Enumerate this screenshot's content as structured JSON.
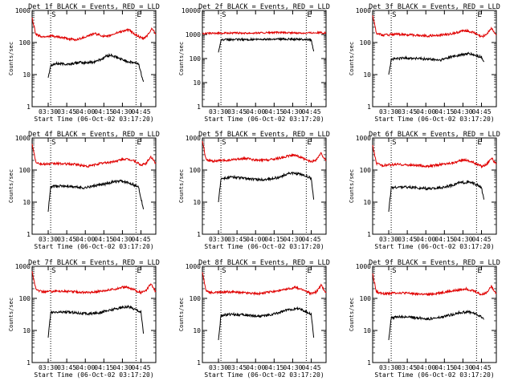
{
  "ylabel": "Counts/sec",
  "xlabel_prefix": "Start Time (06-Oct-02 03:17:20)",
  "xticks": [
    "03:30",
    "03:45",
    "04:00",
    "04:15",
    "04:30",
    "04:45"
  ],
  "yticks": [
    "1",
    "10",
    "100",
    "1000"
  ],
  "markers": [
    "S",
    "E"
  ],
  "colors": {
    "events": "#000000",
    "lld": "#e00000"
  },
  "chart_data": [
    {
      "type": "line",
      "title": "Det 1f BLACK = Events, RED = LLD",
      "x_unit": "minutes since 03:17:20",
      "xlim": [
        0,
        100
      ],
      "ylim": [
        1,
        1000
      ],
      "yscale": "log",
      "series": [
        {
          "name": "Events",
          "color": "#000000",
          "x": [
            13,
            15,
            20,
            30,
            38,
            42,
            50,
            56,
            60,
            64,
            70,
            78,
            86,
            90
          ],
          "y": [
            8,
            20,
            22,
            21,
            24,
            23,
            25,
            30,
            38,
            40,
            32,
            25,
            22,
            6
          ]
        },
        {
          "name": "LLD",
          "color": "#e00000",
          "x": [
            0,
            3,
            8,
            15,
            25,
            35,
            43,
            50,
            60,
            70,
            78,
            84,
            88,
            90,
            94,
            97,
            100
          ],
          "y": [
            600,
            180,
            150,
            160,
            140,
            120,
            150,
            190,
            150,
            210,
            250,
            170,
            140,
            130,
            180,
            280,
            180
          ]
        }
      ],
      "vlines": [
        15,
        84
      ],
      "grid": false
    },
    {
      "type": "line",
      "title": "Det 2f BLACK = Events, RED = LLD",
      "x_unit": "minutes since 03:17:20",
      "xlim": [
        0,
        100
      ],
      "ylim": [
        1,
        10000
      ],
      "yscale": "log",
      "series": [
        {
          "name": "Events",
          "color": "#000000",
          "x": [
            13,
            15,
            30,
            45,
            60,
            75,
            85,
            88,
            90
          ],
          "y": [
            180,
            600,
            620,
            620,
            650,
            640,
            620,
            600,
            200
          ]
        },
        {
          "name": "LLD",
          "color": "#e00000",
          "x": [
            0,
            20,
            40,
            60,
            80,
            95,
            100
          ],
          "y": [
            1100,
            1150,
            1150,
            1200,
            1150,
            1200,
            1150
          ]
        }
      ],
      "vlines": [
        15,
        84
      ],
      "grid": false
    },
    {
      "type": "line",
      "title": "Det 3f BLACK = Events, RED = LLD",
      "x_unit": "minutes since 03:17:20",
      "xlim": [
        0,
        100
      ],
      "ylim": [
        1,
        1000
      ],
      "yscale": "log",
      "series": [
        {
          "name": "Events",
          "color": "#000000",
          "x": [
            13,
            15,
            25,
            35,
            45,
            55,
            62,
            70,
            78,
            84,
            88,
            90
          ],
          "y": [
            10,
            30,
            33,
            32,
            30,
            28,
            35,
            40,
            45,
            38,
            35,
            25
          ]
        },
        {
          "name": "LLD",
          "color": "#e00000",
          "x": [
            0,
            3,
            8,
            20,
            35,
            45,
            55,
            65,
            75,
            82,
            88,
            92,
            96,
            100
          ],
          "y": [
            700,
            200,
            170,
            180,
            170,
            160,
            170,
            190,
            240,
            200,
            150,
            180,
            280,
            170
          ]
        }
      ],
      "vlines": [
        15,
        84
      ],
      "grid": false
    },
    {
      "type": "line",
      "title": "Det 4f BLACK = Events, RED = LLD",
      "x_unit": "minutes since 03:17:20",
      "xlim": [
        0,
        100
      ],
      "ylim": [
        1,
        1000
      ],
      "yscale": "log",
      "series": [
        {
          "name": "Events",
          "color": "#000000",
          "x": [
            13,
            15,
            25,
            35,
            42,
            50,
            58,
            65,
            72,
            80,
            86,
            90
          ],
          "y": [
            5,
            30,
            32,
            30,
            28,
            32,
            36,
            42,
            45,
            38,
            30,
            6
          ]
        },
        {
          "name": "LLD",
          "color": "#e00000",
          "x": [
            0,
            3,
            8,
            20,
            35,
            45,
            55,
            65,
            75,
            82,
            88,
            92,
            96,
            100
          ],
          "y": [
            650,
            180,
            150,
            160,
            150,
            130,
            160,
            180,
            220,
            200,
            140,
            160,
            260,
            160
          ]
        }
      ],
      "vlines": [
        15,
        84
      ],
      "grid": false
    },
    {
      "type": "line",
      "title": "Det 5f BLACK = Events, RED = LLD",
      "x_unit": "minutes since 03:17:20",
      "xlim": [
        0,
        100
      ],
      "ylim": [
        1,
        1000
      ],
      "yscale": "log",
      "series": [
        {
          "name": "Events",
          "color": "#000000",
          "x": [
            13,
            15,
            25,
            35,
            45,
            55,
            62,
            70,
            78,
            84,
            88,
            90
          ],
          "y": [
            10,
            55,
            60,
            55,
            50,
            52,
            60,
            80,
            75,
            65,
            55,
            12
          ]
        },
        {
          "name": "LLD",
          "color": "#e00000",
          "x": [
            0,
            3,
            8,
            20,
            35,
            45,
            55,
            65,
            75,
            82,
            88,
            92,
            96,
            100
          ],
          "y": [
            800,
            210,
            190,
            200,
            230,
            200,
            210,
            250,
            300,
            220,
            180,
            210,
            330,
            190
          ]
        }
      ],
      "vlines": [
        15,
        84
      ],
      "grid": false
    },
    {
      "type": "line",
      "title": "Det 6f BLACK = Events, RED = LLD",
      "x_unit": "minutes since 03:17:20",
      "xlim": [
        0,
        100
      ],
      "ylim": [
        1,
        1000
      ],
      "yscale": "log",
      "series": [
        {
          "name": "Events",
          "color": "#000000",
          "x": [
            13,
            15,
            25,
            35,
            45,
            55,
            62,
            70,
            78,
            84,
            88,
            90
          ],
          "y": [
            5,
            28,
            30,
            28,
            26,
            28,
            32,
            40,
            42,
            35,
            28,
            12
          ]
        },
        {
          "name": "LLD",
          "color": "#e00000",
          "x": [
            0,
            3,
            8,
            20,
            35,
            45,
            55,
            65,
            75,
            82,
            88,
            92,
            96,
            100
          ],
          "y": [
            600,
            160,
            140,
            150,
            140,
            130,
            150,
            170,
            210,
            170,
            130,
            150,
            240,
            150
          ]
        }
      ],
      "vlines": [
        15,
        84
      ],
      "grid": false
    },
    {
      "type": "line",
      "title": "Det 7f BLACK = Events, RED = LLD",
      "x_unit": "minutes since 03:17:20",
      "xlim": [
        0,
        100
      ],
      "ylim": [
        1,
        1000
      ],
      "yscale": "log",
      "series": [
        {
          "name": "Events",
          "color": "#000000",
          "x": [
            13,
            15,
            25,
            35,
            45,
            55,
            62,
            70,
            78,
            84,
            88,
            90
          ],
          "y": [
            6,
            35,
            38,
            36,
            33,
            36,
            42,
            50,
            55,
            45,
            38,
            8
          ]
        },
        {
          "name": "LLD",
          "color": "#e00000",
          "x": [
            0,
            3,
            8,
            20,
            35,
            45,
            55,
            65,
            75,
            82,
            88,
            92,
            96,
            100
          ],
          "y": [
            700,
            190,
            160,
            170,
            160,
            150,
            170,
            190,
            230,
            190,
            150,
            170,
            280,
            160
          ]
        }
      ],
      "vlines": [
        15,
        84
      ],
      "grid": false
    },
    {
      "type": "line",
      "title": "Det 8f BLACK = Events, RED = LLD",
      "x_unit": "minutes since 03:17:20",
      "xlim": [
        0,
        100
      ],
      "ylim": [
        1,
        1000
      ],
      "yscale": "log",
      "series": [
        {
          "name": "Events",
          "color": "#000000",
          "x": [
            13,
            15,
            25,
            35,
            45,
            55,
            62,
            70,
            78,
            84,
            88,
            90
          ],
          "y": [
            5,
            30,
            32,
            30,
            28,
            30,
            36,
            45,
            48,
            38,
            32,
            6
          ]
        },
        {
          "name": "LLD",
          "color": "#e00000",
          "x": [
            0,
            3,
            8,
            20,
            35,
            45,
            55,
            65,
            75,
            82,
            88,
            92,
            96,
            100
          ],
          "y": [
            650,
            170,
            150,
            160,
            150,
            140,
            160,
            180,
            220,
            180,
            140,
            160,
            260,
            150
          ]
        }
      ],
      "vlines": [
        15,
        84
      ],
      "grid": false
    },
    {
      "type": "line",
      "title": "Det 9f BLACK = Events, RED = LLD",
      "x_unit": "minutes since 03:17:20",
      "xlim": [
        0,
        100
      ],
      "ylim": [
        1,
        1000
      ],
      "yscale": "log",
      "series": [
        {
          "name": "Events",
          "color": "#000000",
          "x": [
            13,
            15,
            25,
            35,
            45,
            55,
            62,
            70,
            78,
            84,
            88,
            90
          ],
          "y": [
            5,
            25,
            27,
            25,
            23,
            25,
            30,
            36,
            38,
            32,
            26,
            22
          ]
        },
        {
          "name": "LLD",
          "color": "#e00000",
          "x": [
            0,
            3,
            8,
            20,
            35,
            45,
            55,
            65,
            75,
            82,
            88,
            92,
            96,
            100
          ],
          "y": [
            600,
            160,
            140,
            150,
            140,
            130,
            150,
            170,
            200,
            170,
            130,
            150,
            240,
            140
          ]
        }
      ],
      "vlines": [
        15,
        84
      ],
      "grid": false
    }
  ]
}
